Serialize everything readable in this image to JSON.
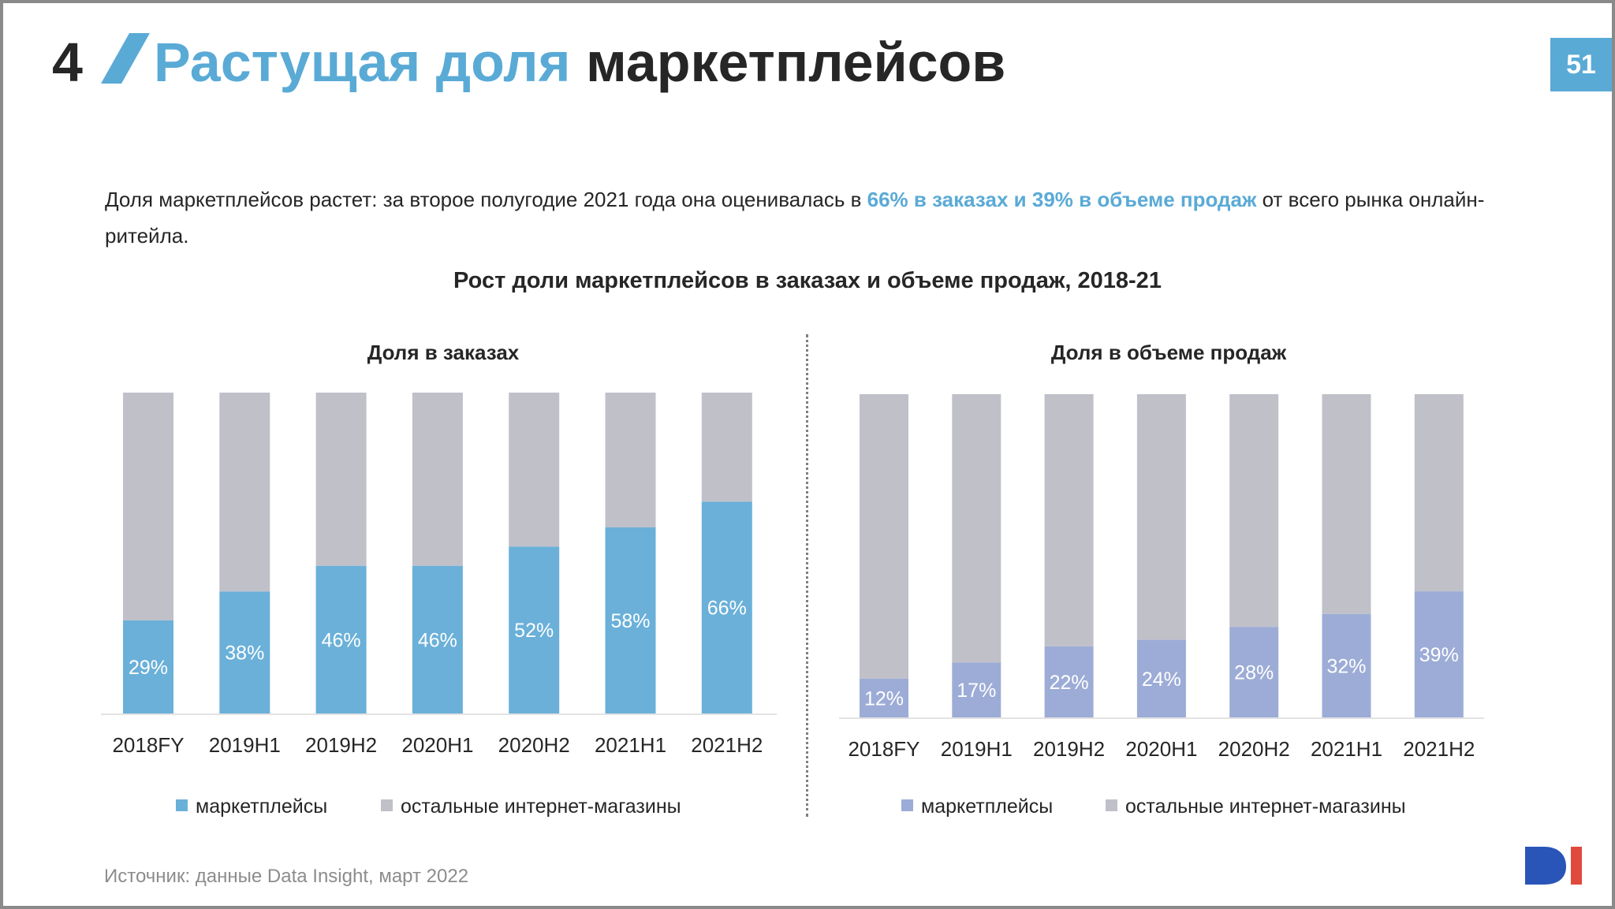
{
  "header": {
    "section_number": "4",
    "title_accent": "Растущая доля",
    "title_rest": "маркетплейсов",
    "page_number": "51"
  },
  "intro": {
    "part1": "Доля маркетплейсов растет: за второе полугодие 2021 года она оценивалась в ",
    "highlight": "66% в заказах и 39% в объеме продаж",
    "part2": " от всего рынка онлайн-ритейла."
  },
  "main_title": "Рост доли маркетплейсов в заказах и объеме продаж, 2018-21",
  "source": "Источник: данные Data Insight, март 2022",
  "colors": {
    "accent": "#5aaad6",
    "orders_marketplaces": "#6ab0d9",
    "sales_marketplaces": "#9cacd6",
    "other_shops": "#c0c0c9"
  },
  "icons": [
    "slash-mark-icon",
    "data-insight-logo-icon"
  ],
  "chart_data": [
    {
      "type": "bar",
      "stacked": true,
      "title": "Доля в заказах",
      "categories": [
        "2018FY",
        "2019H1",
        "2019H2",
        "2020H1",
        "2020H2",
        "2021H1",
        "2021H2"
      ],
      "series": [
        {
          "name": "маркетплейсы",
          "values": [
            29,
            38,
            46,
            46,
            52,
            58,
            66
          ],
          "labels": [
            "29%",
            "38%",
            "46%",
            "46%",
            "52%",
            "58%",
            "66%"
          ],
          "color": "#6ab0d9"
        },
        {
          "name": "остальные интернет-магазины",
          "values": [
            71,
            62,
            54,
            54,
            48,
            42,
            34
          ],
          "color": "#c0c0c9"
        }
      ],
      "ylim": [
        0,
        100
      ],
      "legend": "bottom"
    },
    {
      "type": "bar",
      "stacked": true,
      "title": "Доля в объеме продаж",
      "categories": [
        "2018FY",
        "2019H1",
        "2019H2",
        "2020H1",
        "2020H2",
        "2021H1",
        "2021H2"
      ],
      "series": [
        {
          "name": "маркетплейсы",
          "values": [
            12,
            17,
            22,
            24,
            28,
            32,
            39
          ],
          "labels": [
            "12%",
            "17%",
            "22%",
            "24%",
            "28%",
            "32%",
            "39%"
          ],
          "color": "#9cacd6"
        },
        {
          "name": "остальные интернет-магазины",
          "values": [
            88,
            83,
            78,
            76,
            72,
            68,
            61
          ],
          "color": "#c0c0c9"
        }
      ],
      "ylim": [
        0,
        100
      ],
      "legend": "bottom"
    }
  ]
}
